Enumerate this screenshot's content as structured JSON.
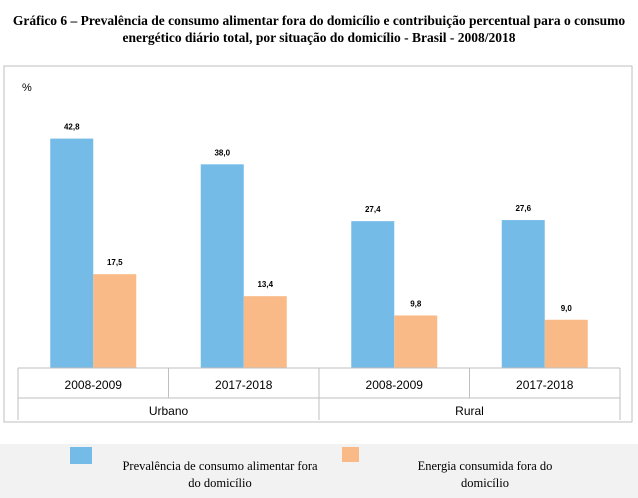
{
  "chart_data": {
    "type": "bar",
    "title": "Gráfico 6 – Prevalência de consumo alimentar fora do domicílio e contribuição percentual para o consumo energético diário total, por situação do domicílio - Brasil - 2008/2018",
    "ylabel": "%",
    "ylim": [
      0,
      50
    ],
    "grid": false,
    "legend_position": "bottom",
    "categories": [
      "2008-2009",
      "2017-2018",
      "2008-2009",
      "2017-2018"
    ],
    "groups": [
      {
        "label": "Urbano",
        "span": 2
      },
      {
        "label": "Rural",
        "span": 2
      }
    ],
    "series": [
      {
        "name": "Prevalência de consumo alimentar fora do domicílio",
        "values": [
          42.8,
          38.0,
          27.4,
          27.6
        ],
        "labels": [
          "42,8",
          "38,0",
          "27,4",
          "27,6"
        ],
        "color": "#75bbe8"
      },
      {
        "name": "Energia consumida fora do domicílio",
        "values": [
          17.5,
          13.4,
          9.8,
          9.0
        ],
        "labels": [
          "17,5",
          "13,4",
          "9,8",
          "9,0"
        ],
        "color": "#f9ba87"
      }
    ]
  },
  "legend": {
    "item1_line1": "Prevalência de consumo alimentar fora",
    "item1_line2": "do domicílio",
    "item2_line1": "Energia consumida fora do",
    "item2_line2": "domicílio"
  }
}
